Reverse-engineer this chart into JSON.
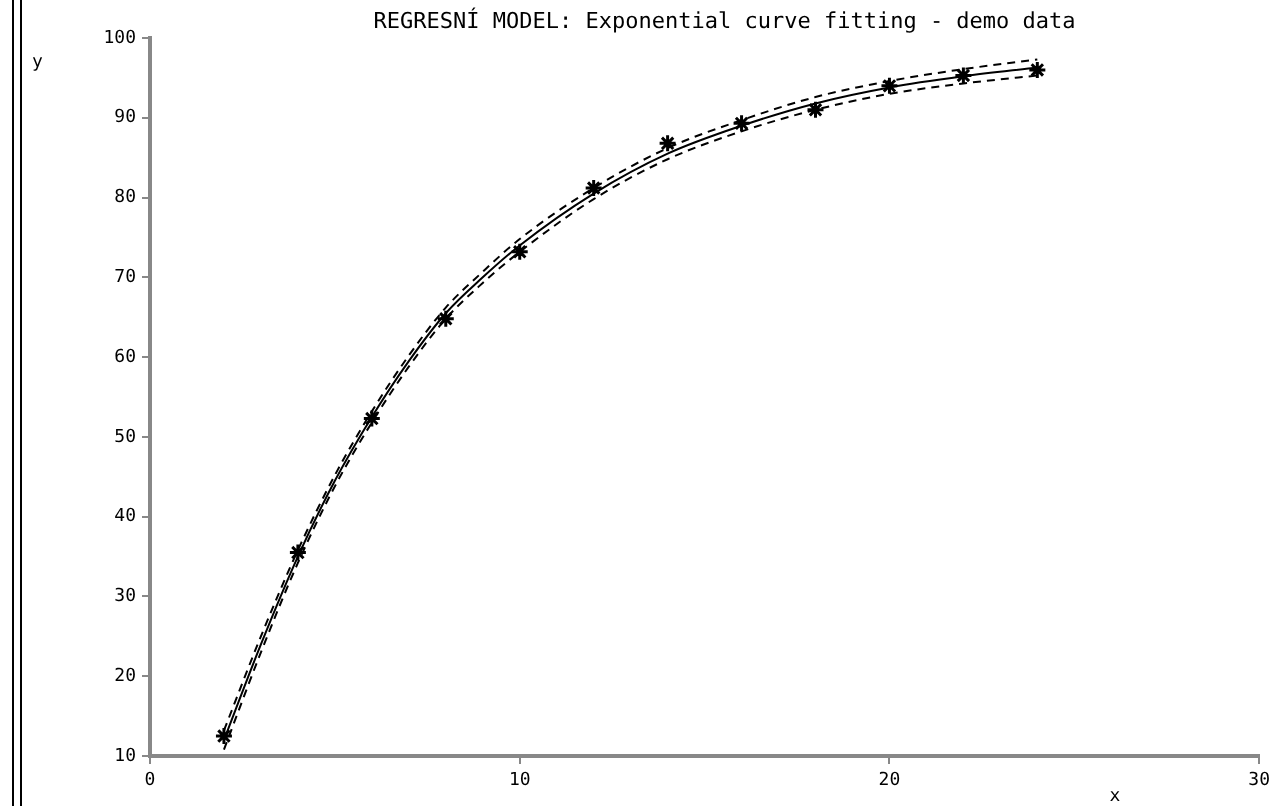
{
  "chart_data": {
    "type": "scatter",
    "title": "REGRESNÍ MODEL: Exponential curve fitting - demo data",
    "xlabel": "x",
    "ylabel": "y",
    "xlim": [
      0,
      30
    ],
    "xticks": [
      0,
      10,
      20,
      30
    ],
    "ylim": [
      10,
      100
    ],
    "yticks": [
      10,
      20,
      30,
      40,
      50,
      60,
      70,
      80,
      90,
      100
    ],
    "grid": false,
    "legend": false,
    "series": [
      {
        "color": "#000000",
        "marker": "cross",
        "x": [
          2,
          4,
          6,
          8,
          10,
          12,
          14,
          16,
          18,
          20,
          22,
          24
        ],
        "values": [
          12.5,
          35.5,
          52.3,
          64.8,
          73.2,
          81.2,
          86.8,
          89.3,
          91.0,
          94.0,
          95.3,
          96.0
        ]
      },
      {
        "type": "line",
        "color": "#000000",
        "marker": "none",
        "line_style": "solid",
        "x": [
          2,
          3,
          4,
          5,
          6,
          7,
          8,
          9,
          10,
          12,
          14,
          16,
          18,
          20,
          22,
          24
        ],
        "values": [
          12,
          24,
          35,
          44.5,
          52.5,
          59.5,
          65.5,
          70,
          74,
          80.5,
          85.5,
          89,
          91.8,
          93.8,
          95.2,
          96.3
        ]
      },
      {
        "type": "line",
        "color": "#000000",
        "marker": "none",
        "line_style": "dashed",
        "x": [
          2,
          3,
          4,
          5,
          6,
          7,
          8,
          9,
          10,
          12,
          14,
          16,
          18,
          20,
          22,
          24
        ],
        "values": [
          10.8,
          23,
          34.2,
          43.8,
          51.8,
          58.8,
          64.8,
          69.3,
          73.2,
          79.8,
          84.8,
          88.3,
          91,
          93,
          94.3,
          95.3
        ]
      },
      {
        "type": "line",
        "color": "#000000",
        "marker": "none",
        "line_style": "dashed",
        "x": [
          2,
          3,
          4,
          5,
          6,
          7,
          8,
          9,
          10,
          12,
          14,
          16,
          18,
          20,
          22,
          24
        ],
        "values": [
          13.2,
          25,
          35.8,
          45.2,
          53.2,
          60.2,
          66.2,
          70.7,
          74.8,
          81.2,
          86.2,
          89.7,
          92.6,
          94.6,
          96.1,
          97.3
        ]
      }
    ]
  }
}
